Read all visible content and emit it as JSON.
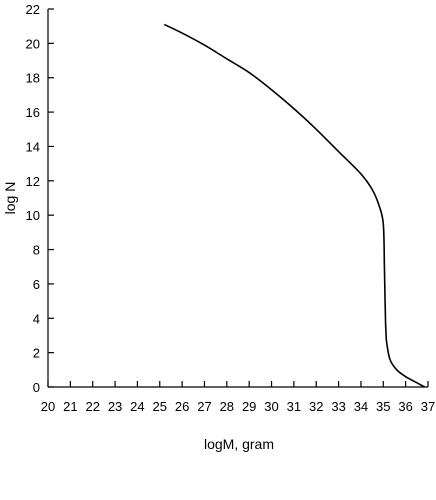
{
  "chart_data": {
    "type": "line",
    "title": "",
    "xlabel": "logM, gram",
    "ylabel": "log N",
    "xlim": [
      20,
      37
    ],
    "ylim": [
      0,
      22
    ],
    "x_ticks": [
      20,
      21,
      22,
      23,
      24,
      25,
      26,
      27,
      28,
      29,
      30,
      31,
      32,
      33,
      34,
      35,
      36,
      37
    ],
    "y_ticks": [
      0,
      2,
      4,
      6,
      8,
      10,
      12,
      14,
      16,
      18,
      20,
      22
    ],
    "grid": false,
    "series": [
      {
        "x": [
          25.2,
          26.0,
          27.0,
          28.0,
          29.0,
          30.0,
          31.0,
          32.0,
          33.0,
          34.0,
          34.5,
          34.8,
          35.0,
          35.05,
          35.08,
          35.1,
          35.12,
          35.15,
          35.3,
          35.6,
          36.0,
          36.5,
          36.85
        ],
        "y": [
          21.1,
          20.6,
          19.9,
          19.1,
          18.3,
          17.3,
          16.2,
          15.0,
          13.7,
          12.4,
          11.5,
          10.6,
          9.5,
          7.0,
          5.0,
          3.8,
          3.2,
          2.6,
          1.6,
          1.0,
          0.6,
          0.25,
          0.0
        ]
      }
    ]
  }
}
